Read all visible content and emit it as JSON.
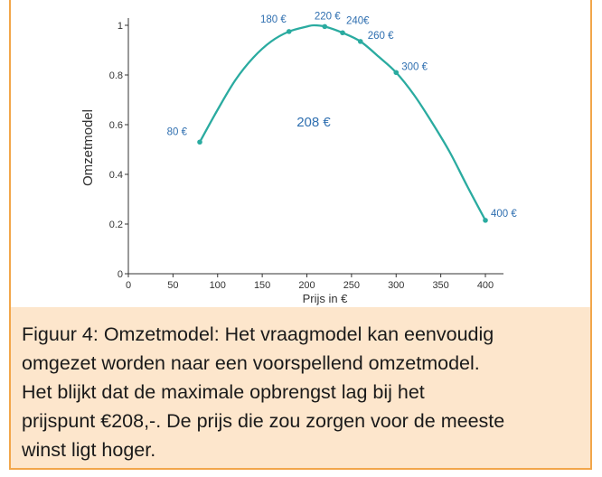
{
  "chart_data": {
    "type": "line",
    "xlabel": "Prijs in €",
    "ylabel": "Omzetmodel",
    "xlim": [
      0,
      400
    ],
    "ylim": [
      0,
      1
    ],
    "x_ticks": [
      "0",
      "50",
      "100",
      "150",
      "200",
      "250",
      "300",
      "350",
      "400"
    ],
    "y_ticks": [
      "0",
      "0.2",
      "0.4",
      "0.6",
      "0.8",
      "1"
    ],
    "series": [
      {
        "color": "#2aaba0",
        "x": [
          80,
          100,
          120,
          140,
          160,
          180,
          200,
          208,
          220,
          240,
          260,
          280,
          300,
          320,
          340,
          360,
          380,
          400
        ],
        "y": [
          0.53,
          0.66,
          0.78,
          0.87,
          0.935,
          0.975,
          0.995,
          1.0,
          0.995,
          0.97,
          0.935,
          0.875,
          0.81,
          0.72,
          0.61,
          0.49,
          0.35,
          0.215
        ]
      }
    ],
    "markers": [
      {
        "x": 80,
        "y": 0.53,
        "label": "80 €"
      },
      {
        "x": 180,
        "y": 0.975,
        "label": "180 €"
      },
      {
        "x": 220,
        "y": 0.995,
        "label": "220 €"
      },
      {
        "x": 240,
        "y": 0.97,
        "label": "240€"
      },
      {
        "x": 260,
        "y": 0.935,
        "label": "260 €"
      },
      {
        "x": 300,
        "y": 0.81,
        "label": "300 €"
      },
      {
        "x": 400,
        "y": 0.215,
        "label": "400 €"
      }
    ],
    "annotation": "208 €",
    "grid": false,
    "line_color": "#2aaba0",
    "label_color": "#2f6fb0"
  },
  "caption": {
    "lines": [
      "Figuur 4: Omzetmodel: Het vraagmodel kan eenvoudig",
      "omgezet worden naar een voorspellend omzetmodel.",
      "Het blijkt dat de maximale opbrengst lag bij het",
      "prijspunt €208,-. De prijs die zou zorgen voor de meeste",
      "winst ligt hoger."
    ]
  },
  "theme": {
    "border_color": "#f2a64a",
    "caption_bg": "#fde6cc"
  }
}
